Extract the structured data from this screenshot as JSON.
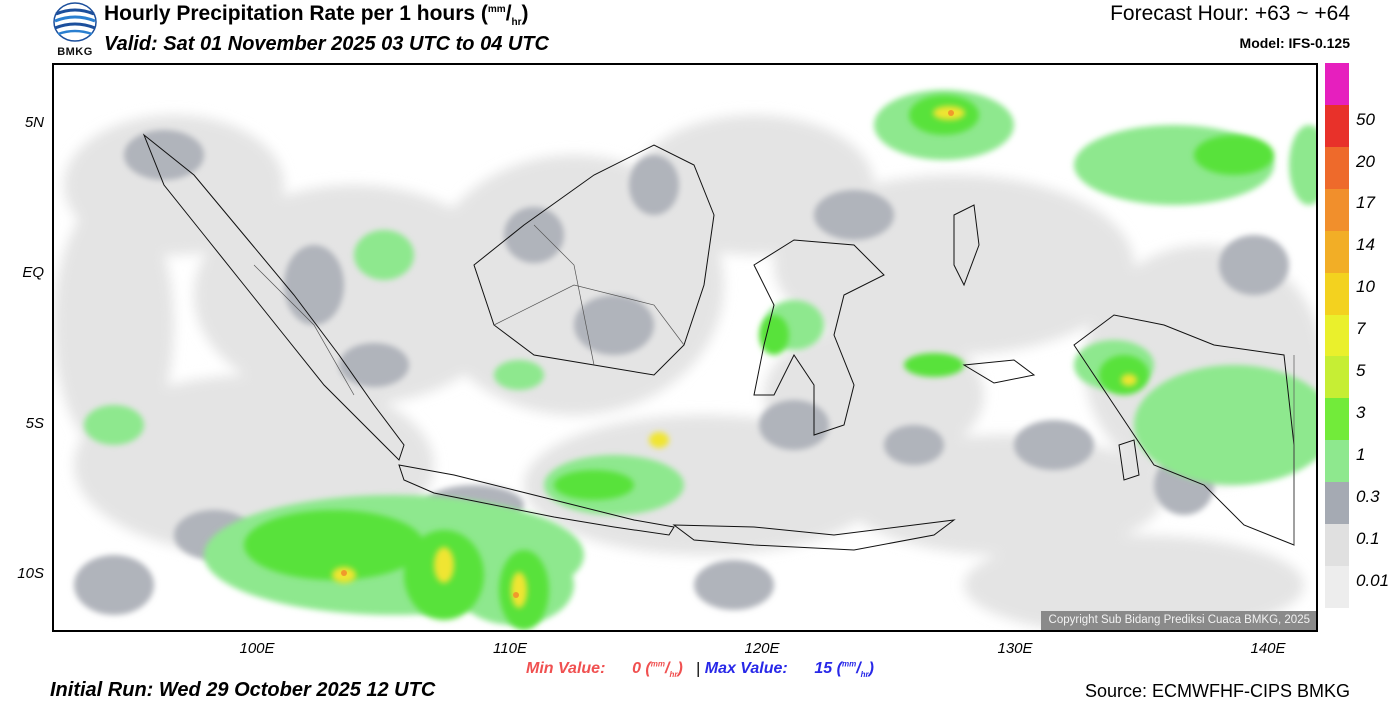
{
  "header": {
    "title_main": "Hourly Precipitation Rate per 1 hours (",
    "unit_sup": "mm",
    "unit_slash": "/",
    "unit_sub": "hr",
    "title_close": ")",
    "valid": "Valid: Sat 01 November 2025 03 UTC to 04 UTC",
    "forecast_hour": "Forecast Hour: +63 ~ +64",
    "model": "Model: IFS-0.125"
  },
  "logo": {
    "text": "BMKG",
    "icon": "bmkg-logo-icon"
  },
  "map": {
    "lat_labels": [
      "5N",
      "EQ",
      "5S",
      "10S"
    ],
    "lon_labels": [
      "100E",
      "110E",
      "120E",
      "130E",
      "140E"
    ],
    "copyright": "Copyright Sub Bidang Prediksi Cuaca BMKG, 2025"
  },
  "colorbar": {
    "labels": [
      "50",
      "20",
      "17",
      "14",
      "10",
      "7",
      "5",
      "3",
      "1",
      "0.3",
      "0.1",
      "0.01"
    ],
    "colors": [
      "#e61fbe",
      "#e8312a",
      "#ee6a2b",
      "#f18f2c",
      "#f2ae26",
      "#f3d21f",
      "#eaf02c",
      "#c6ee34",
      "#72eb3a",
      "#8ee88e",
      "#a5aab3",
      "#e0e0e0",
      "#ededed"
    ]
  },
  "stats": {
    "min_label": "Min Value:",
    "min_value": "0",
    "max_label": "Max Value:",
    "max_value": "15",
    "separator": "|",
    "unit_sup": "mm",
    "unit_slash": "/",
    "unit_sub": "hr",
    "open": " (",
    "close": ")"
  },
  "footer": {
    "initial_run": "Initial Run: Wed 29 October 2025 12 UTC",
    "source": "Source: ECMWFHF-CIPS BMKG"
  }
}
